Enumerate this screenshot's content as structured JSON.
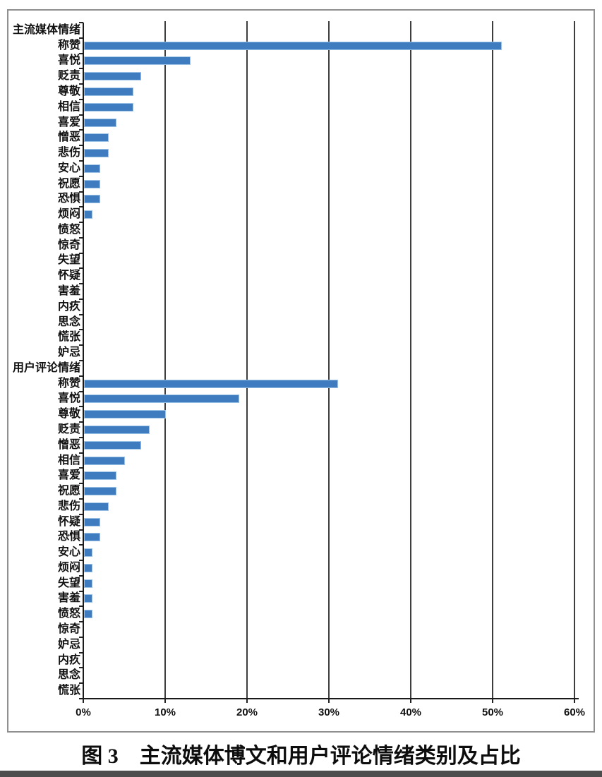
{
  "caption": "图 3　主流媒体博文和用户评论情绪类别及占比",
  "chart_data": {
    "type": "bar",
    "orientation": "horizontal",
    "title": "",
    "xlabel": "",
    "ylabel": "",
    "xlim": [
      0,
      60
    ],
    "x_ticks": [
      "0%",
      "10%",
      "20%",
      "30%",
      "40%",
      "50%",
      "60%"
    ],
    "grid": "vertical-lines-at-each-10-percent",
    "legend": "none",
    "bar_color": "#3e7cbf",
    "bar_edge_color": "#9cc2e5",
    "gridline_color": "#3d3d3d",
    "unit": "percent",
    "groups": [
      {
        "label": "主流媒体情绪",
        "categories": [
          "称赞",
          "喜悦",
          "贬责",
          "尊敬",
          "相信",
          "喜爱",
          "憎恶",
          "悲伤",
          "安心",
          "祝愿",
          "恐惧",
          "烦闷",
          "愤怒",
          "惊奇",
          "失望",
          "怀疑",
          "害羞",
          "内疚",
          "思念",
          "慌张",
          "妒忌"
        ],
        "values": [
          51,
          13,
          7,
          6,
          6,
          4,
          3,
          3,
          2,
          2,
          2,
          1,
          0,
          0,
          0,
          0,
          0,
          0,
          0,
          0,
          0
        ]
      },
      {
        "label": "用户评论情绪",
        "categories": [
          "称赞",
          "喜悦",
          "尊敬",
          "贬责",
          "憎恶",
          "相信",
          "喜爱",
          "祝愿",
          "悲伤",
          "怀疑",
          "恐惧",
          "安心",
          "烦闷",
          "失望",
          "害羞",
          "愤怒",
          "惊奇",
          "妒忌",
          "内疚",
          "思念",
          "慌张"
        ],
        "values": [
          31,
          19,
          10,
          8,
          7,
          5,
          4,
          4,
          3,
          2,
          2,
          1,
          1,
          1,
          1,
          1,
          0,
          0,
          0,
          0,
          0
        ]
      }
    ]
  }
}
